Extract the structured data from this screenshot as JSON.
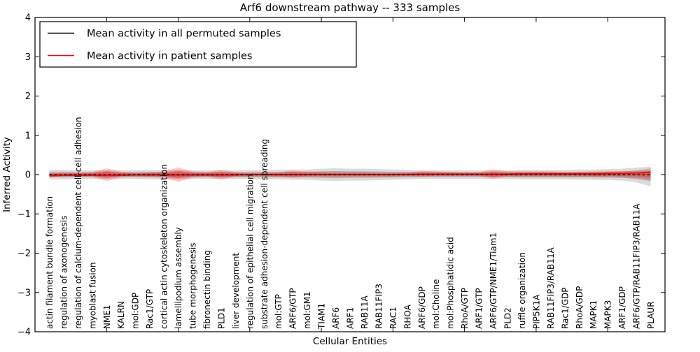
{
  "legend": {
    "items": [
      {
        "label": "Mean activity in all permuted samples",
        "color": "#000000"
      },
      {
        "label": "Mean activity in patient samples",
        "color": "#ff0000"
      }
    ]
  },
  "chart_data": {
    "type": "line",
    "title": "Arf6 downstream pathway -- 333 samples",
    "xlabel": "Cellular Entities",
    "ylabel": "Inferred Activity",
    "ylim": [
      -4,
      4
    ],
    "xlim": [
      0,
      44
    ],
    "yticks": [
      4,
      3,
      2,
      1,
      0,
      -1,
      -2,
      -3,
      -4
    ],
    "xtick_positions": [
      0,
      5,
      10,
      15,
      20,
      25,
      30,
      35,
      40
    ],
    "grid": false,
    "legend_position": "upper-left",
    "categories": [
      "actin filament bundle formation",
      "regulation of axonogenesis",
      "regulation of calcium-dependent cell-cell adhesion",
      "myoblast fusion",
      "NME1",
      "KALRN",
      "mol:GDP",
      "Rac1/GTP",
      "cortical actin cytoskeleton organization",
      "lamellipodium assembly",
      "tube morphogenesis",
      "fibronectin binding",
      "PLD1",
      "liver development",
      "regulation of epithelial cell migration",
      "substrate adhesion-dependent cell spreading",
      "mol:GTP",
      "ARF6/GTP",
      "mol:GM1",
      "TIAM1",
      "ARF6",
      "ARF1",
      "RAB11A",
      "RAB11FIP3",
      "RAC1",
      "RHOA",
      "ARF6/GDP",
      "mol:Choline",
      "mol:Phosphatidic acid",
      "RhoA/GTP",
      "ARF1/GTP",
      "ARF6/GTP/NME1/Tiam1",
      "PLD2",
      "ruffle organization",
      "PIP5K1A",
      "RAB11FIP3/RAB11A",
      "Rac1/GDP",
      "RhoA/GDP",
      "MAPK1",
      "MAPK3",
      "ARF1/GDP",
      "ARF6/GTP/RAB11FIP3/RAB11A",
      "PLAUR"
    ],
    "series": [
      {
        "name": "Mean activity in all permuted samples",
        "color": "#000000",
        "style": "dashed-on-plot",
        "values": [
          0,
          0,
          0,
          0,
          0,
          0,
          0,
          0,
          0,
          0,
          0,
          0,
          0,
          0,
          0,
          0,
          0,
          0,
          0,
          0,
          0,
          0,
          0,
          0,
          0,
          0,
          0,
          0,
          0,
          0,
          0,
          0,
          0,
          0,
          0,
          0,
          0,
          0,
          0,
          0,
          0,
          0,
          0
        ]
      },
      {
        "name": "Mean activity in patient samples",
        "color": "#ff0000",
        "style": "solid",
        "values": [
          -0.03,
          -0.02,
          -0.02,
          -0.02,
          -0.02,
          -0.02,
          -0.01,
          -0.01,
          -0.01,
          -0.01,
          -0.01,
          -0.01,
          -0.01,
          -0.01,
          0,
          0,
          0,
          0,
          0,
          0,
          0,
          0,
          0,
          0,
          0,
          0,
          0.01,
          0.01,
          0.01,
          0.01,
          0.01,
          0.01,
          0.01,
          0.02,
          0.02,
          0.02,
          0.02,
          0.02,
          0.02,
          0.03,
          0.03,
          0.04,
          0.06
        ]
      }
    ],
    "bands": [
      {
        "name": "permuted-samples-range",
        "color": "#555555",
        "opacity": 0.22,
        "upper": [
          0.12,
          0.12,
          0.11,
          0.11,
          0.12,
          0.11,
          0.11,
          0.12,
          0.12,
          0.12,
          0.11,
          0.11,
          0.11,
          0.11,
          0.11,
          0.12,
          0.12,
          0.13,
          0.13,
          0.15,
          0.16,
          0.15,
          0.15,
          0.14,
          0.13,
          0.12,
          0.11,
          0.11,
          0.11,
          0.11,
          0.11,
          0.11,
          0.11,
          0.12,
          0.12,
          0.12,
          0.12,
          0.13,
          0.13,
          0.14,
          0.15,
          0.18,
          0.2
        ],
        "lower": [
          -0.12,
          -0.12,
          -0.11,
          -0.11,
          -0.12,
          -0.11,
          -0.11,
          -0.12,
          -0.12,
          -0.12,
          -0.11,
          -0.11,
          -0.11,
          -0.11,
          -0.11,
          -0.12,
          -0.12,
          -0.13,
          -0.13,
          -0.15,
          -0.16,
          -0.15,
          -0.15,
          -0.14,
          -0.13,
          -0.12,
          -0.11,
          -0.11,
          -0.11,
          -0.11,
          -0.11,
          -0.11,
          -0.11,
          -0.12,
          -0.12,
          -0.12,
          -0.12,
          -0.13,
          -0.13,
          -0.14,
          -0.15,
          -0.2,
          -0.3
        ]
      },
      {
        "name": "patient-samples-range",
        "color": "#ff0000",
        "opacity": 0.22,
        "upper": [
          0.04,
          0.05,
          0.05,
          0.06,
          0.16,
          0.07,
          0.05,
          0.06,
          0.08,
          0.18,
          0.08,
          0.06,
          0.12,
          0.06,
          0.05,
          0.05,
          0.06,
          0.1,
          0.08,
          0.07,
          0.06,
          0.06,
          0.06,
          0.05,
          0.05,
          0.06,
          0.09,
          0.08,
          0.07,
          0.06,
          0.06,
          0.13,
          0.08,
          0.08,
          0.08,
          0.08,
          0.07,
          0.07,
          0.08,
          0.08,
          0.09,
          0.1,
          0.16
        ],
        "lower": [
          -0.06,
          -0.05,
          -0.05,
          -0.06,
          -0.16,
          -0.07,
          -0.05,
          -0.06,
          -0.08,
          -0.18,
          -0.08,
          -0.06,
          -0.12,
          -0.06,
          -0.05,
          -0.05,
          -0.06,
          -0.08,
          -0.06,
          -0.05,
          -0.05,
          -0.05,
          -0.05,
          -0.05,
          -0.05,
          -0.04,
          -0.05,
          -0.04,
          -0.04,
          -0.04,
          -0.04,
          -0.1,
          -0.05,
          -0.05,
          -0.05,
          -0.05,
          -0.05,
          -0.05,
          -0.06,
          -0.06,
          -0.07,
          -0.08,
          -0.12
        ]
      }
    ]
  }
}
